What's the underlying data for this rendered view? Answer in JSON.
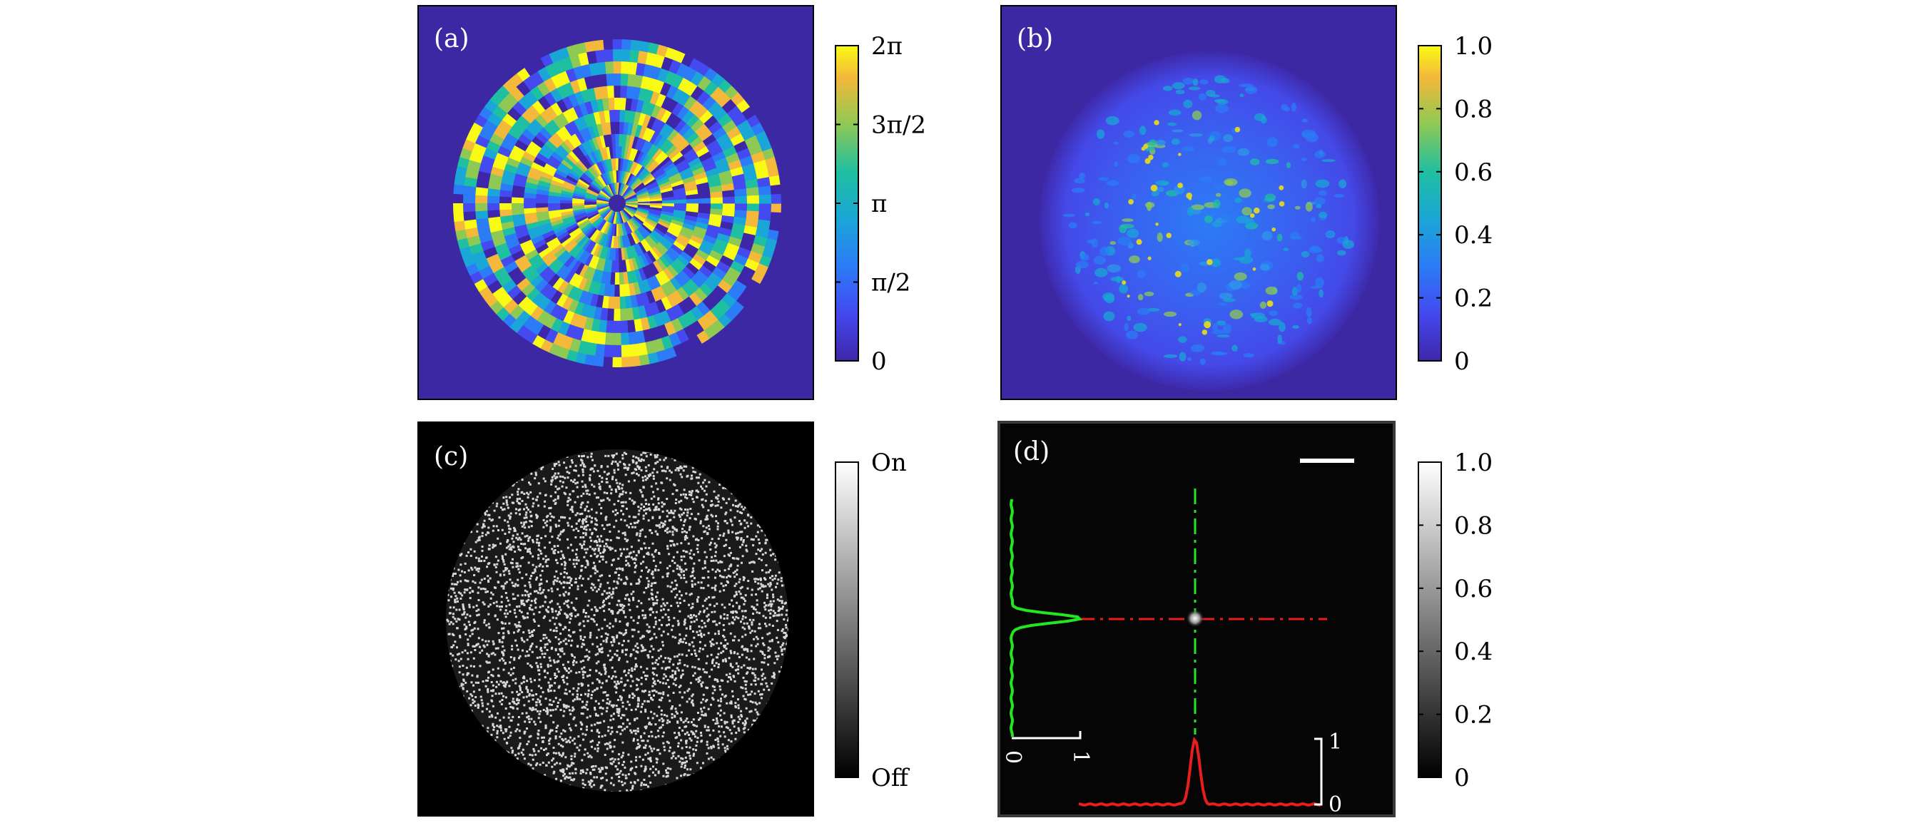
{
  "colors": {
    "parula_dark": "#3d28a4",
    "background_black": "#000000",
    "profile_green": "#22e622",
    "profile_red": "#e81e1e",
    "frame": "#000000"
  },
  "chart_data": [
    {
      "type": "heatmap",
      "panel": "a",
      "label": "(a)",
      "description_type": "phase map",
      "colormap": "parula",
      "colorbar": {
        "ticks": [
          0,
          1.5708,
          3.1416,
          4.7124,
          6.2832
        ],
        "tick_labels": [
          "0",
          "π/2",
          "π",
          "3π/2",
          "2π"
        ],
        "range": [
          0,
          6.2832
        ]
      }
    },
    {
      "type": "heatmap",
      "panel": "b",
      "label": "(b)",
      "colormap": "parula",
      "colorbar": {
        "ticks": [
          0,
          0.2,
          0.4,
          0.6,
          0.8,
          1.0
        ],
        "tick_labels": [
          "0",
          "0.2",
          "0.4",
          "0.6",
          "0.8",
          "1.0"
        ],
        "range": [
          0,
          1.0
        ]
      }
    },
    {
      "type": "heatmap",
      "panel": "c",
      "label": "(c)",
      "colormap": "gray",
      "colorbar": {
        "ticks": [
          0,
          1
        ],
        "tick_labels": [
          "Off",
          "On"
        ],
        "range": [
          0,
          1
        ]
      }
    },
    {
      "type": "heatmap",
      "panel": "d",
      "label": "(d)",
      "colormap": "gray",
      "colorbar": {
        "ticks": [
          0,
          0.2,
          0.4,
          0.6,
          0.8,
          1.0
        ],
        "tick_labels": [
          "0",
          "0.2",
          "0.4",
          "0.6",
          "0.8",
          "1.0"
        ],
        "range": [
          0,
          1.0
        ]
      },
      "profiles": {
        "vertical": {
          "color": "green",
          "peak_value": 1,
          "scale_labels": [
            "0",
            "1"
          ]
        },
        "horizontal": {
          "color": "red",
          "peak_value": 1,
          "scale_labels": [
            "0",
            "1"
          ]
        }
      }
    }
  ]
}
